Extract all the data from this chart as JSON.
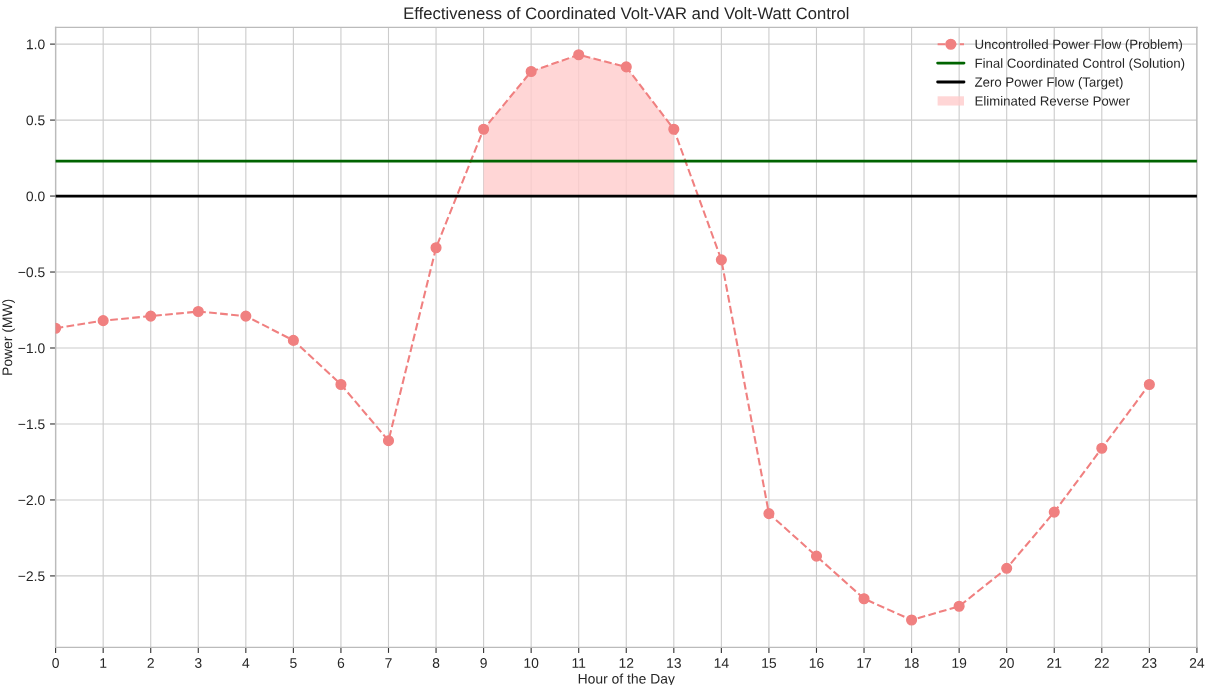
{
  "chart_data": {
    "type": "line",
    "title": "Effectiveness of Coordinated Volt-VAR and Volt-Watt Control",
    "xlabel": "Hour of the Day",
    "ylabel": "Power (MW)",
    "xlim": [
      0,
      24
    ],
    "xticks": [
      0,
      1,
      2,
      3,
      4,
      5,
      6,
      7,
      8,
      9,
      10,
      11,
      12,
      13,
      14,
      15,
      16,
      17,
      18,
      19,
      20,
      21,
      22,
      23,
      24
    ],
    "ylim": [
      -2.97,
      1.11
    ],
    "yticks": [
      {
        "value": 1.0,
        "label": "1.0"
      },
      {
        "value": 0.5,
        "label": "0.5"
      },
      {
        "value": 0.0,
        "label": "0.0"
      },
      {
        "value": -0.5,
        "label": "−0.5"
      },
      {
        "value": -1.0,
        "label": "−1.0"
      },
      {
        "value": -1.5,
        "label": "−1.5"
      },
      {
        "value": -2.0,
        "label": "−2.0"
      },
      {
        "value": -2.5,
        "label": "−2.5"
      }
    ],
    "grid": true,
    "legend": "top right",
    "series": [
      {
        "name": "Uncontrolled Power Flow (Problem)",
        "color": "#f08080",
        "marker": "circle",
        "line_style": "dashed",
        "x": [
          0,
          1,
          2,
          3,
          4,
          5,
          6,
          7,
          8,
          9,
          10,
          11,
          12,
          13,
          14,
          15,
          16,
          17,
          18,
          19,
          20,
          21,
          22,
          23
        ],
        "values": [
          -0.87,
          -0.82,
          -0.79,
          -0.76,
          -0.79,
          -0.95,
          -1.24,
          -1.61,
          -0.34,
          0.44,
          0.82,
          0.93,
          0.85,
          0.44,
          -0.42,
          -2.09,
          -2.37,
          -2.65,
          -2.79,
          -2.7,
          -2.45,
          -2.08,
          -1.66,
          -1.24
        ]
      },
      {
        "name": "Final Coordinated Control (Solution)",
        "color": "#006400",
        "marker": "none",
        "line_style": "solid",
        "x": [
          0,
          24
        ],
        "values": [
          0.23,
          0.23
        ]
      },
      {
        "name": "Zero Power Flow (Target)",
        "color": "#000000",
        "marker": "none",
        "line_style": "solid",
        "x": [
          0,
          24
        ],
        "values": [
          0.0,
          0.0
        ]
      },
      {
        "name": "Eliminated Reverse Power",
        "type": "area",
        "color": "#ffcccc",
        "x": [
          9,
          10,
          11,
          12,
          13
        ],
        "values": [
          0.44,
          0.82,
          0.93,
          0.85,
          0.44
        ]
      }
    ]
  }
}
